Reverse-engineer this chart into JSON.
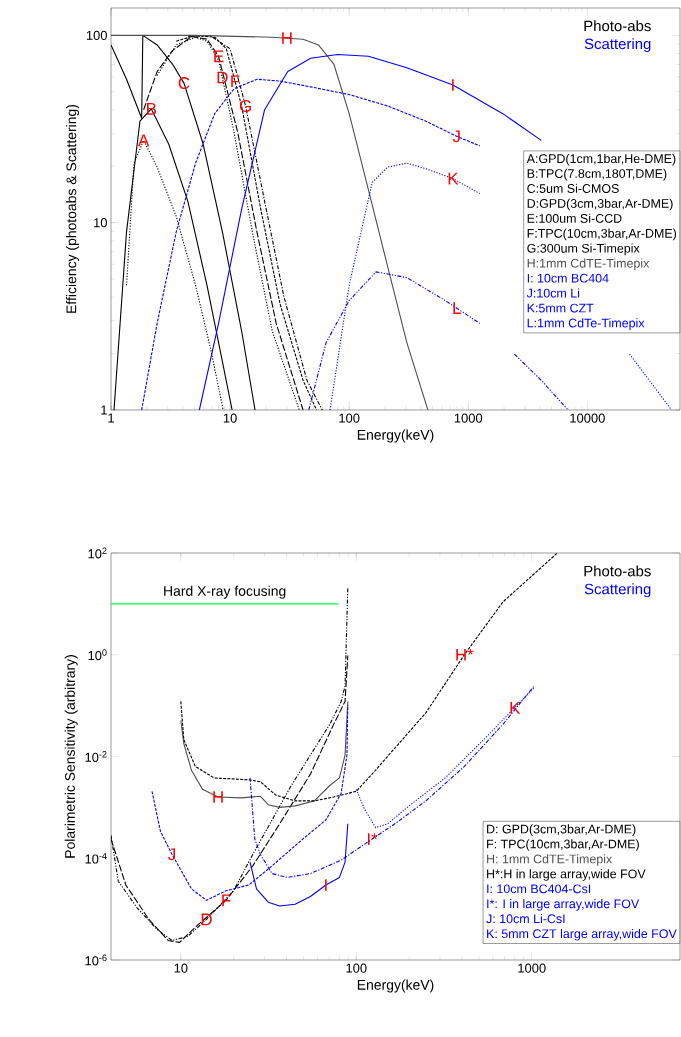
{
  "chart_data": [
    {
      "type": "line",
      "xlabel": "Energy(keV)",
      "ylabel": "Efficiency (photoabs & Scattering)",
      "log": "xy",
      "xlim": [
        1,
        60000
      ],
      "ylim": [
        1,
        140
      ],
      "xticks": [
        1,
        10,
        100,
        1000,
        10000
      ],
      "yticks": [
        1,
        10,
        100
      ],
      "annotations": [
        "A:GPD(1cm,1bar,He-DME)",
        "B:TPC(7.8cm,180T,DME)",
        "C:5um Si-CMOS",
        "D:GPD(3cm,3bar,Ar-DME)",
        "E:100um Si-CCD",
        "F:TPC(10cm,3bar,Ar-DME)",
        "G:300um Si-Timepix",
        "H:1mm CdTE-Timepix",
        "I: 10cm BC404",
        "J:10cm Li",
        "K:5mm CZT",
        "L:1mm CdTe-Timepix",
        "Photo-abs",
        "Scattering",
        {
          "text": "A",
          "x": 1.88,
          "y": 27.5
        },
        {
          "text": "B",
          "x": 2.18,
          "y": 40.5
        },
        {
          "text": "C",
          "x": 4.1,
          "y": 55.6
        },
        {
          "text": "D",
          "x": 8.6,
          "y": 59.6
        },
        {
          "text": "E",
          "x": 8.0,
          "y": 77.3
        },
        {
          "text": "F",
          "x": 11,
          "y": 56.9
        },
        {
          "text": "G",
          "x": 13.5,
          "y": 42
        },
        {
          "text": "H",
          "x": 30,
          "y": 96.8
        },
        {
          "text": "I",
          "x": 743,
          "y": 54.3
        },
        {
          "text": "J",
          "x": 800,
          "y": 28.9
        },
        {
          "text": "K",
          "x": 743,
          "y": 17.2
        },
        {
          "text": "L",
          "x": 800,
          "y": 3.5
        }
      ],
      "series": [
        {
          "color": "#000000",
          "line_style": "dotted",
          "x": [
            1.35,
            1.56,
            1.88,
            2.44,
            3.53,
            5.13,
            6.9,
            8.75
          ],
          "values": [
            4.63,
            20.8,
            27.5,
            19.8,
            10.8,
            4.63,
            2.09,
            1
          ]
        },
        {
          "color": "#000000",
          "line_style": "solid",
          "x": [
            1.06,
            1.35,
            1.75,
            2.18,
            3.05,
            4.42,
            6.4,
            8.62,
            10.4
          ],
          "values": [
            1,
            8.93,
            34.8,
            40.5,
            26.3,
            13,
            4.63,
            1.81,
            1
          ]
        },
        {
          "color": "#000000",
          "line_style": "solid",
          "x": [
            1,
            1.35,
            1.81,
            1.85,
            2.44,
            3.28,
            4.1,
            5.94,
            8.62,
            12.5,
            16.2
          ],
          "values": [
            88.9,
            58.3,
            36.1,
            100,
            88.9,
            70.3,
            55.6,
            26.3,
            8.93,
            2.64,
            1
          ]
        },
        {
          "color": "#000000",
          "line_style": "dotted",
          "x": [
            2.44,
            3.53,
            5.13,
            6.4,
            8.0,
            10.8,
            15.6,
            22.6,
            38.1
          ],
          "values": [
            61.1,
            88.9,
            97.7,
            93.1,
            73.8,
            30.3,
            8.53,
            2.64,
            1
          ]
        },
        {
          "color": "#000000",
          "line_style": "longdashed",
          "x": [
            1.88,
            2.44,
            3.28,
            4.76,
            6.4,
            8.0,
            11.6,
            16.8,
            24.4,
            41
          ],
          "values": [
            40.1,
            64.1,
            82.9,
            98.6,
            95.4,
            77.3,
            30.3,
            8.93,
            2.9,
            1
          ]
        },
        {
          "color": "#000000",
          "line_style": "dashed",
          "x": [
            3.53,
            5.13,
            7.43,
            9.29,
            12.5,
            18.1,
            26.3,
            41,
            53.2
          ],
          "values": [
            93.1,
            100,
            97.7,
            84.9,
            42,
            11.8,
            3.67,
            1.44,
            1
          ]
        },
        {
          "color": "#000000",
          "line_style": "dashdot",
          "x": [
            4.42,
            6.9,
            10,
            13.5,
            19.5,
            28.3,
            44.2,
            59.4
          ],
          "values": [
            99,
            99,
            84.9,
            42,
            13,
            4.03,
            1.44,
            1
          ]
        },
        {
          "color": "#505050",
          "line_style": "solid",
          "x": [
            1,
            5.13,
            22.6,
            41,
            55.2,
            74.3,
            100,
            145,
            210,
            305,
            458
          ],
          "values": [
            100,
            100,
            97.7,
            95.4,
            88.9,
            70.3,
            38.2,
            15,
            5.86,
            2.29,
            1
          ]
        },
        {
          "color": "#0000ff",
          "line_style": "solid",
          "x": [
            5.52,
            8,
            12.5,
            19.5,
            30.5,
            47.5,
            80,
            145,
            305,
            743,
            1950,
            4100
          ],
          "values": [
            1,
            2.9,
            11.8,
            40.1,
            64.1,
            75.5,
            79.1,
            77.3,
            67.1,
            54.3,
            38.2,
            27.5
          ]
        },
        {
          "color": "#0000ff",
          "line_style": "dashed",
          "x": [
            1.81,
            2.44,
            3.53,
            5.13,
            7.43,
            10.8,
            16.8,
            26.3,
            47.5,
            100,
            210,
            442,
            800,
            1250
          ],
          "values": [
            1,
            2.9,
            8.93,
            20.8,
            38.2,
            51.9,
            58.3,
            57,
            53.1,
            48.3,
            42,
            34.8,
            28.9,
            25.7
          ]
        },
        {
          "color": "#0000ff",
          "line_style": "dotted",
          "x": [
            69,
            100,
            156,
            210,
            305,
            442,
            743,
            1250,
            5000,
            22600,
            51000
          ],
          "values": [
            1,
            4.63,
            16.4,
            19.8,
            20.8,
            19.4,
            17.2,
            14.3,
            null,
            1.99,
            1
          ]
        },
        {
          "color": "#0000ff",
          "line_style": "dashdotdot",
          "x": [
            45.8,
            64,
            100,
            168,
            305,
            640,
            1250,
            1800,
            2440,
            4100,
            6900
          ],
          "values": [
            1,
            2.29,
            3.84,
            5.46,
            5.09,
            3.84,
            2.9,
            null,
            1.99,
            1.44,
            1
          ]
        }
      ]
    },
    {
      "type": "line",
      "xlabel": "Energy(keV)",
      "ylabel": "Polarimetric Sensitivity (arbitrary)",
      "log": "xy",
      "xlim": [
        4,
        7000
      ],
      "ylim": [
        1e-06,
        100
      ],
      "xticks": [
        10,
        100,
        1000
      ],
      "yticks": [
        {
          "value": 1e-06,
          "label": "10$^{-6}$"
        },
        {
          "value": 0.0001,
          "label": "10$^{-4}$"
        },
        {
          "value": 0.01,
          "label": "10$^{-2}$"
        },
        {
          "value": 1,
          "label": "10$^{0}$"
        },
        {
          "value": 100,
          "label": "10$^{2}$"
        }
      ],
      "annotations": [
        "D: GPD(3cm,3bar,Ar-DME)",
        "F: TPC(10cm,3bar,Ar-DME)",
        "H: 1mm CdTE-Timepix",
        "H*:H in large array,wide FOV",
        "I: 10cm BC404-CsI",
        "I*: I in large array,wide FOV",
        "J: 10cm Li-CsI",
        "K: 5mm CZT large array,wide FOV",
        "Photo-abs",
        "Scattering",
        {
          "text": "H",
          "x": 16.3,
          "y": 0.0016
        },
        {
          "text": "H*",
          "x": 413,
          "y": 1
        },
        {
          "text": "I",
          "x": 67.1,
          "y": 2.98e-05
        },
        {
          "text": "I*",
          "x": 123,
          "y": 0.000238
        },
        {
          "text": "J",
          "x": 8.91,
          "y": 0.000119
        },
        {
          "text": "K",
          "x": 800,
          "y": 0.0906
        },
        {
          "text": "D",
          "x": 14,
          "y": 6.27e-06
        },
        {
          "text": "F",
          "x": 18.1,
          "y": 1.49e-05
        }
      ],
      "series": [
        {
          "color": "#000000",
          "line_style": "dashdotdot",
          "x": [
            4,
            4.4,
            5.65,
            7.28,
            8.91,
            10.9,
            14,
            20,
            25.7,
            33.1,
            42.6,
            54.8,
            70.6,
            82,
            86.3,
            89.5
          ],
          "values": [
            0.000283,
            3.54e-05,
            1.05e-05,
            4.06e-06,
            2.42e-06,
            2.88e-06,
            6.27e-06,
            2.3e-05,
            0.000119,
            0.000565,
            0.00269,
            0.0107,
            0.0428,
            0.121,
            0.242,
            21.8
          ]
        },
        {
          "color": "#000000",
          "line_style": "longdashed",
          "x": [
            4,
            4.86,
            6.58,
            8.47,
            9.84,
            12.1,
            18.1,
            25.7,
            36.6,
            54.8,
            74.3,
            86.3,
            89.5
          ],
          "values": [
            0.000238,
            2.98e-05,
            6.27e-06,
            2.42e-06,
            2.22e-06,
            4.43e-06,
            1.49e-05,
            7.08e-05,
            0.000475,
            0.00451,
            0.0428,
            0.121,
            0.966
          ]
        },
        {
          "color": "#505050",
          "line_style": "solid",
          "x": [
            10,
            10.4,
            11.5,
            13.3,
            16.3,
            22.1,
            28.4,
            31.5,
            36.6,
            44.8,
            57.7,
            70.6,
            80.2,
            86.3,
            89.5
          ],
          "values": [
            0.0509,
            0.018,
            0.00536,
            0.00226,
            0.0016,
            0.00154,
            0.00165,
            0.00113,
            0.001,
            0.00107,
            0.00134,
            0.00269,
            0.00379,
            0.0107,
            0.121
          ]
        },
        {
          "color": "#000000",
          "line_style": "dashed",
          "x": [
            10,
            10.4,
            12.1,
            15.5,
            24.4,
            28.4,
            34.8,
            44.8,
            57.7,
            74.3,
            100,
            123,
            175,
            249,
            413,
            685,
            1390
          ],
          "values": [
            0.121,
            0.0214,
            0.00638,
            0.00379,
            0.00348,
            0.00319,
            0.00174,
            0.00134,
            0.00134,
            0.0016,
            0.00207,
            0.00451,
            0.018,
            0.072,
            1,
            10.9,
            98
          ]
        },
        {
          "color": "#0000ff",
          "line_style": "solid",
          "x": [
            24.8,
            27,
            31.5,
            36.6,
            44.8,
            54.8,
            67.1,
            80.2,
            86.3,
            89.5
          ],
          "values": [
            8.41e-05,
            2.5e-05,
            1.37e-05,
            1.15e-05,
            1.25e-05,
            1.77e-05,
            2.98e-05,
            4.2e-05,
            8.41e-05,
            0.000475
          ]
        },
        {
          "color": "#0000ff",
          "line_style": "dashdot",
          "x": [
            24.8,
            26.4,
            28.4,
            33.1,
            40.5,
            54.8,
            82,
            123,
            166,
            249,
            413,
            685,
            1030
          ],
          "values": [
            0.00379,
            0.000238,
            0.000119,
            5e-05,
            4.2e-05,
            5e-05,
            9.17e-05,
            0.000238,
            0.000475,
            0.00134,
            0.00638,
            0.0428,
            0.242
          ]
        },
        {
          "color": "#0000ff",
          "line_style": "dashed",
          "x": [
            6.85,
            7.66,
            8.91,
            11.5,
            14,
            18.1,
            24.4,
            33.1,
            49.5,
            67.1,
            82,
            88.5,
            89.5
          ],
          "values": [
            0.00207,
            0.000336,
            0.000119,
            2.5e-05,
            1.49e-05,
            2.3e-05,
            2.98e-05,
            7.08e-05,
            0.000238,
            0.000565,
            0.0019,
            0.0107,
            0.102
          ]
        },
        {
          "color": "#0000ff",
          "line_style": "dotted",
          "x": [
            100,
            111,
            129,
            151,
            204,
            321,
            532,
            1030
          ],
          "values": [
            0.00226,
            0.000949,
            0.0004,
            0.000475,
            0.00113,
            0.00379,
            0.0214,
            0.222
          ]
        },
        {
          "name": "Hard X-ray focusing",
          "color": "#00ff40",
          "line_style": "solid",
          "x": [
            4,
            79
          ],
          "values": [
            10,
            10
          ]
        }
      ]
    }
  ]
}
